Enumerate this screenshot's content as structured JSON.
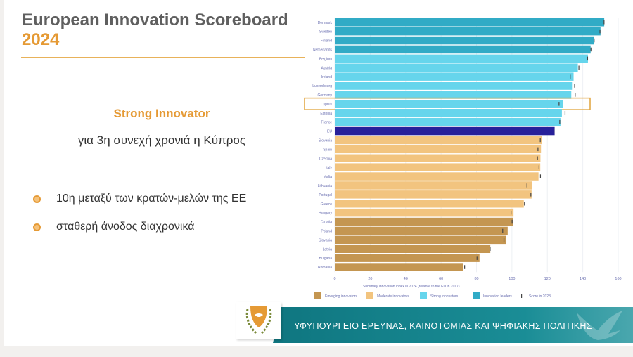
{
  "header": {
    "title": "European Innovation Scoreboard",
    "year": "2024"
  },
  "left": {
    "subtitle": "Strong Innovator",
    "subline": "για 3η συνεχή χρονιά η Κύπρος",
    "bullets": [
      "10η μεταξύ των κρατών-μελών της ΕΕ",
      "σταθερή άνοδος διαχρονικά"
    ]
  },
  "footer": {
    "ministry": "ΥΦΥΠΟΥΡΓΕΙΟ ΕΡΕΥΝΑΣ, ΚΑΙΝΟΤΟΜΙΑΣ ΚΑΙ ΨΗΦΙΑΚΗΣ ΠΟΛΙΤΙΚΗΣ"
  },
  "colors": {
    "accent": "#e59a35",
    "emerging": "#c49651",
    "moderate": "#f2c47f",
    "strong": "#66d5ec",
    "leaders": "#31abc6",
    "eu": "#27209a",
    "highlight": "#e0a33c"
  },
  "chart_data": {
    "type": "bar",
    "orientation": "horizontal",
    "xlabel": "Summary innovation index in 2024 (relative to the EU in 2017)",
    "xlim": [
      0,
      160
    ],
    "xticks": [
      "0",
      "20",
      "40",
      "60",
      "80",
      "100",
      "120",
      "140",
      "160"
    ],
    "highlighted": "Cyprus",
    "categories": [
      "Denmark",
      "Sweden",
      "Finland",
      "Netherlands",
      "Belgium",
      "Austria",
      "Ireland",
      "Luxembourg",
      "Germany",
      "Cyprus",
      "Estonia",
      "France",
      "EU",
      "Slovenia",
      "Spain",
      "Czechia",
      "Italy",
      "Malta",
      "Lithuania",
      "Portugal",
      "Greece",
      "Hungary",
      "Croatia",
      "Poland",
      "Slovakia",
      "Latvia",
      "Bulgaria",
      "Romania"
    ],
    "groups": [
      "leaders",
      "leaders",
      "leaders",
      "leaders",
      "strong",
      "strong",
      "strong",
      "strong",
      "strong",
      "strong",
      "strong",
      "strong",
      "eu",
      "moderate",
      "moderate",
      "moderate",
      "moderate",
      "moderate",
      "moderate",
      "moderate",
      "moderate",
      "moderate",
      "emerging",
      "emerging",
      "emerging",
      "emerging",
      "emerging",
      "emerging"
    ],
    "series": [
      {
        "name": "2024",
        "values": [
          152.1,
          150.0,
          146.2,
          144.4,
          142.9,
          137.2,
          134.8,
          133.9,
          133.5,
          129.0,
          128.2,
          127.4,
          124.1,
          116.9,
          116.4,
          116.1,
          116.0,
          115.0,
          111.5,
          111.1,
          106.7,
          100.9,
          100.5,
          97.6,
          96.8,
          87.8,
          81.7,
          72.5
        ]
      },
      {
        "name": "Score in 2023",
        "values": [
          152.0,
          149.7,
          146.4,
          144.6,
          142.7,
          137.8,
          132.9,
          135.4,
          135.7,
          126.6,
          130.0,
          127.0,
          123.7,
          116.0,
          114.7,
          114.4,
          115.3,
          116.1,
          108.5,
          110.7,
          107.1,
          99.5,
          100.1,
          94.8,
          95.5,
          87.7,
          80.3,
          73.3
        ]
      }
    ],
    "legend": [
      "Emerging innovators",
      "Moderate innovators",
      "Strong innovators",
      "Innovation leaders",
      "Score in 2023"
    ],
    "legend_position": "bottom"
  }
}
